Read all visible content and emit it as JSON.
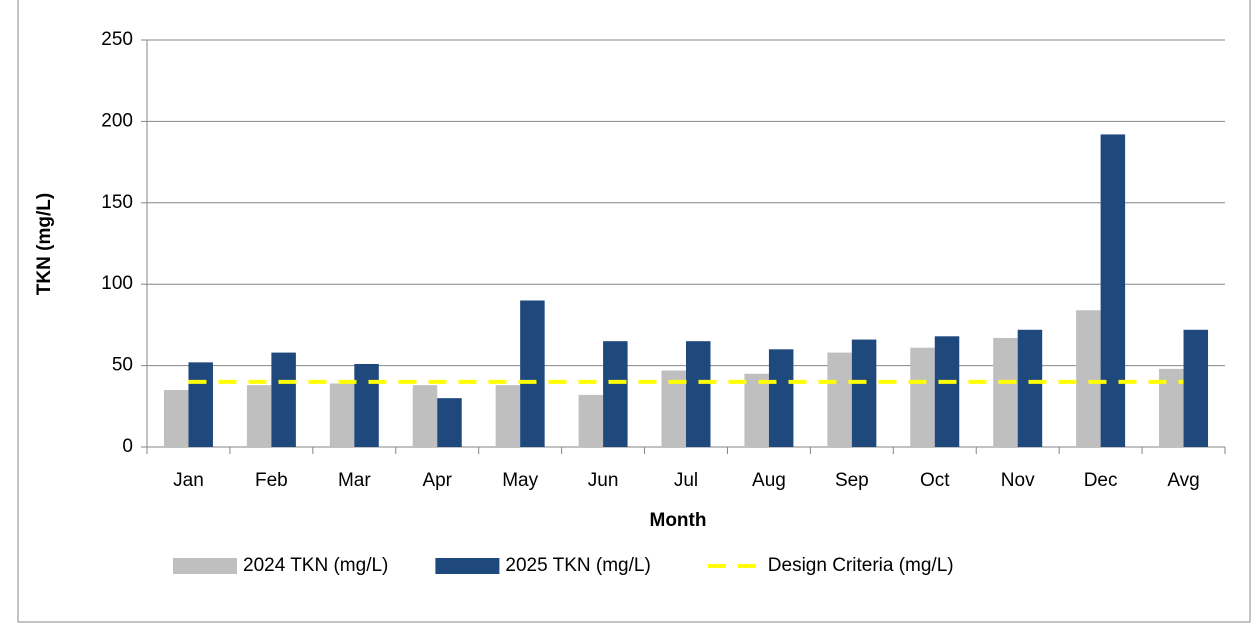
{
  "chart_data": {
    "type": "bar",
    "x_label": "Month",
    "y_label": "TKN (mg/L)",
    "categories": [
      "Jan",
      "Feb",
      "Mar",
      "Apr",
      "May",
      "Jun",
      "Jul",
      "Aug",
      "Sep",
      "Oct",
      "Nov",
      "Dec",
      "Avg"
    ],
    "series": [
      {
        "name": "2024 TKN (mg/L)",
        "type": "bar",
        "color": "#bfbfbf",
        "values": [
          35,
          38,
          39,
          38,
          38,
          32,
          47,
          45,
          58,
          61,
          67,
          84,
          48
        ]
      },
      {
        "name": "2025 TKN (mg/L)",
        "type": "bar",
        "color": "#1f497d",
        "values": [
          52,
          58,
          51,
          30,
          90,
          65,
          65,
          60,
          66,
          68,
          72,
          192,
          72
        ]
      },
      {
        "name": "Design Criteria (mg/L)",
        "type": "line",
        "dashed": true,
        "color": "#ffff00",
        "values": [
          40,
          40,
          40,
          40,
          40,
          40,
          40,
          40,
          40,
          40,
          40,
          40,
          40
        ]
      }
    ],
    "ylim": [
      0,
      250
    ],
    "yticks": [
      0,
      50,
      100,
      150,
      200,
      250
    ],
    "grid": true,
    "legend": "bottom"
  }
}
